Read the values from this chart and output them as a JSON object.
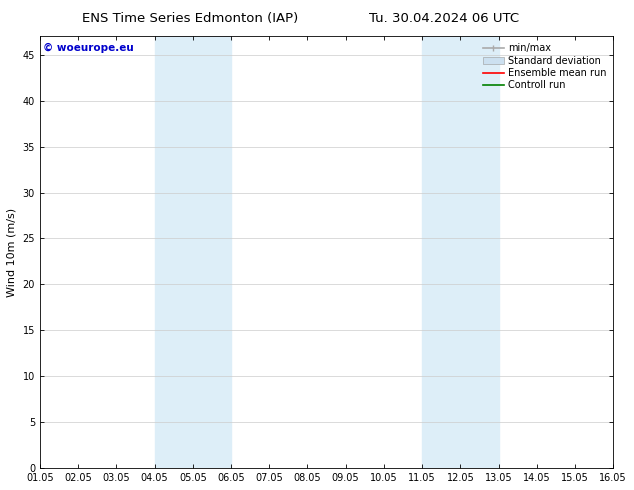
{
  "title_left": "ENS Time Series Edmonton (IAP)",
  "title_right": "Tu. 30.04.2024 06 UTC",
  "ylabel": "Wind 10m (m/s)",
  "watermark": "© woeurope.eu",
  "xlim_start": 0,
  "xlim_end": 15,
  "ylim_min": 0,
  "ylim_max": 47,
  "yticks": [
    0,
    5,
    10,
    15,
    20,
    25,
    30,
    35,
    40,
    45
  ],
  "xtick_labels": [
    "01.05",
    "02.05",
    "03.05",
    "04.05",
    "05.05",
    "06.05",
    "07.05",
    "08.05",
    "09.05",
    "10.05",
    "11.05",
    "12.05",
    "13.05",
    "14.05",
    "15.05",
    "16.05"
  ],
  "shaded_regions": [
    {
      "x_start": 3,
      "x_end": 5,
      "color": "#ddeef8"
    },
    {
      "x_start": 10,
      "x_end": 12,
      "color": "#ddeef8"
    }
  ],
  "legend_entries": [
    {
      "label": "min/max",
      "color": "#aaaaaa",
      "lw": 1.2,
      "style": "line_with_caps"
    },
    {
      "label": "Standard deviation",
      "color": "#cce0f0",
      "lw": 5,
      "style": "band"
    },
    {
      "label": "Ensemble mean run",
      "color": "red",
      "lw": 1.2,
      "style": "line"
    },
    {
      "label": "Controll run",
      "color": "green",
      "lw": 1.2,
      "style": "line"
    }
  ],
  "background_color": "#ffffff",
  "plot_bg_color": "#ffffff",
  "watermark_color": "#0000cc",
  "title_fontsize": 9.5,
  "tick_fontsize": 7,
  "ylabel_fontsize": 8,
  "legend_fontsize": 7,
  "watermark_fontsize": 7.5
}
